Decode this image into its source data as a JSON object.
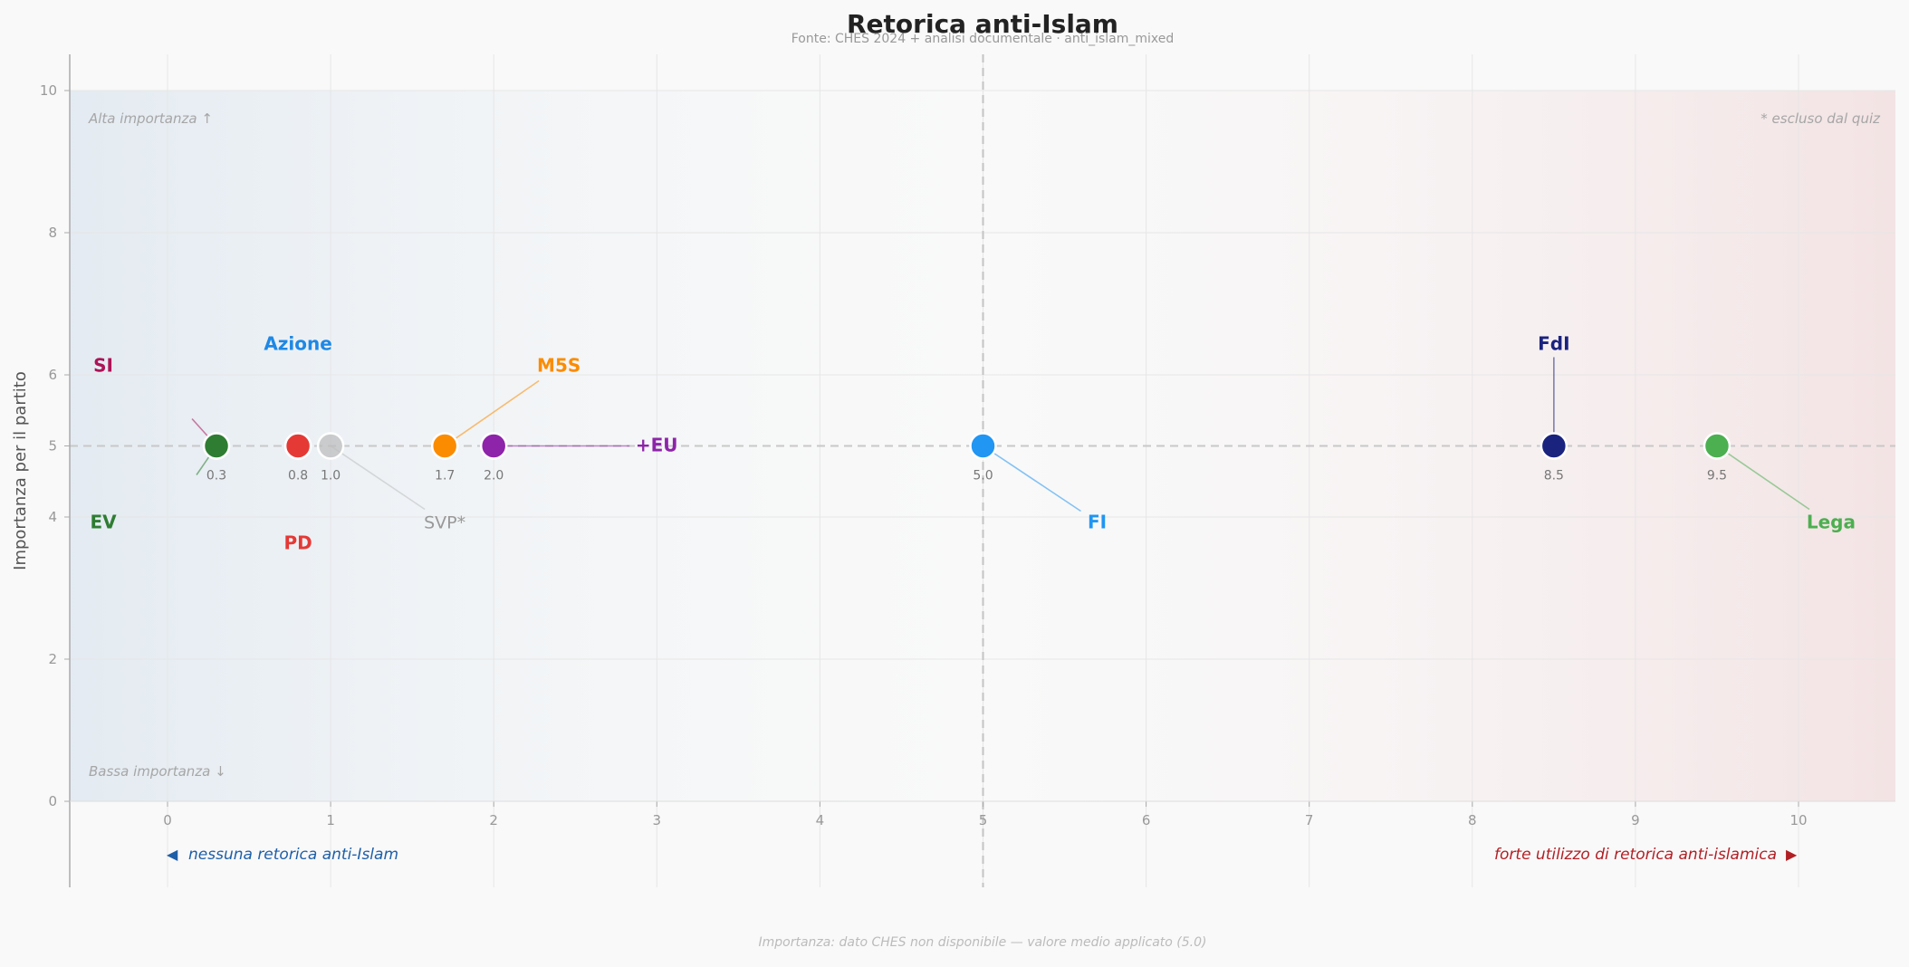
{
  "chart_data": {
    "type": "scatter",
    "title": "Retorica anti-Islam",
    "subtitle": "Fonte: CHES 2024 + analisi documentale  ·  anti_islam_mixed",
    "xlabel": "",
    "ylabel": "Importanza per il partito",
    "xlim": [
      -0.6,
      10.6
    ],
    "ylim": [
      -1.2,
      10.5
    ],
    "x_ticks": [
      0,
      1,
      2,
      3,
      4,
      5,
      6,
      7,
      8,
      9,
      10
    ],
    "y_ticks": [
      0,
      2,
      4,
      5,
      6,
      8,
      10
    ],
    "grid": true,
    "reference_lines": {
      "x": 5,
      "y": 5
    },
    "left_axis_note": "nessuna retorica anti-Islam",
    "right_axis_note": "forte utilizzo di retorica anti-islamica",
    "corner_top_left": "Alta importanza ↑",
    "corner_bottom_left": "Bassa importanza ↓",
    "corner_top_right": "* escluso dal quiz",
    "footnote": "Importanza: dato CHES non disponibile — valore medio applicato (5.0)",
    "colors": {
      "left_tint": "#dce6ef",
      "right_tint": "#f2dfe0",
      "left_note": "#1e5fa8",
      "right_note": "#b21f24"
    },
    "points": [
      {
        "name": "SI",
        "x": 0.3,
        "y": 5,
        "value_label": "0.3",
        "color": "#ad1457",
        "excluded": false
      },
      {
        "name": "EV",
        "x": 0.3,
        "y": 5,
        "value_label": "0.3",
        "color": "#2e7d32",
        "excluded": false
      },
      {
        "name": "Azione",
        "x": 0.8,
        "y": 5,
        "value_label": "0.8",
        "color": "#1e88e5",
        "excluded": false
      },
      {
        "name": "PD",
        "x": 0.8,
        "y": 5,
        "value_label": "0.8",
        "color": "#e53935",
        "excluded": false
      },
      {
        "name": "SVP*",
        "x": 1.0,
        "y": 5,
        "value_label": "1.0",
        "color": "#bdbdbd",
        "excluded": true
      },
      {
        "name": "M5S",
        "x": 1.7,
        "y": 5,
        "value_label": "1.7",
        "color": "#fb8c00",
        "excluded": false
      },
      {
        "name": "+EU",
        "x": 2.0,
        "y": 5,
        "value_label": "2.0",
        "color": "#8e24aa",
        "excluded": false
      },
      {
        "name": "FI",
        "x": 5.0,
        "y": 5,
        "value_label": "5.0",
        "color": "#2196f3",
        "excluded": false
      },
      {
        "name": "FdI",
        "x": 8.5,
        "y": 5,
        "value_label": "8.5",
        "color": "#1a237e",
        "excluded": false
      },
      {
        "name": "Lega",
        "x": 9.5,
        "y": 5,
        "value_label": "9.5",
        "color": "#4caf50",
        "excluded": false
      }
    ]
  }
}
